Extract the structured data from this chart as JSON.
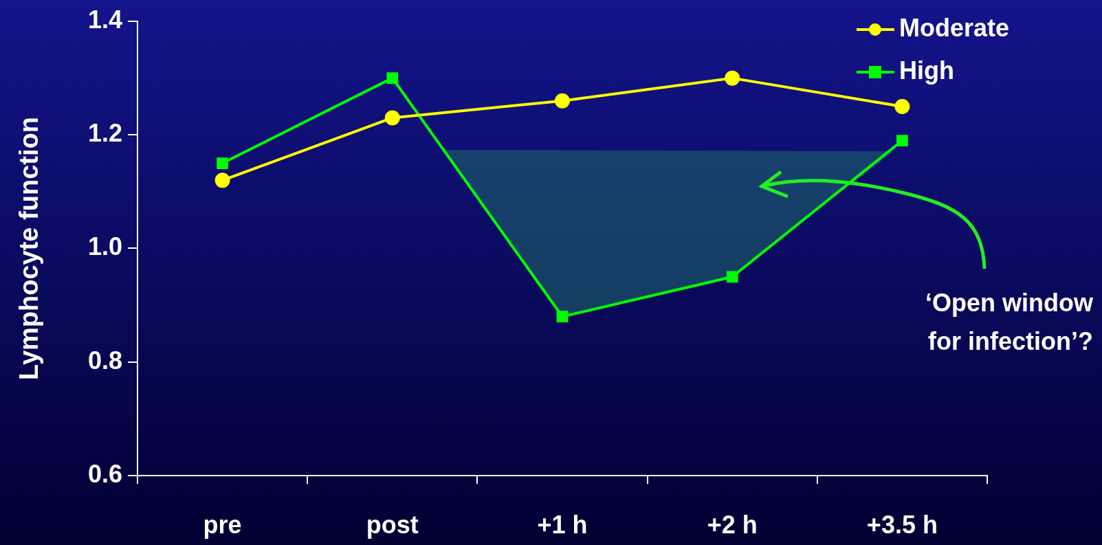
{
  "chart_data": {
    "type": "line",
    "categories": [
      "pre",
      "post",
      "+1 h",
      "+2 h",
      "+3.5 h"
    ],
    "ylabel": "Lymphocyte function",
    "ylim": [
      0.6,
      1.4
    ],
    "yticks": [
      0.6,
      0.8,
      {
        "value": 1.0,
        "label": "1.0"
      },
      1.2,
      1.4
    ],
    "grid": false,
    "legend": "top right",
    "line_style": "solid",
    "series": [
      {
        "name": "Moderate",
        "color": "#ffff00",
        "marker": "circle",
        "values": [
          1.12,
          1.23,
          1.26,
          1.3,
          1.25
        ]
      },
      {
        "name": "High",
        "color": "#00ff00",
        "marker": "square",
        "values": [
          1.15,
          1.3,
          0.88,
          0.95,
          1.19
        ]
      }
    ],
    "annotations": [
      "‘Open window for infection’?"
    ]
  }
}
